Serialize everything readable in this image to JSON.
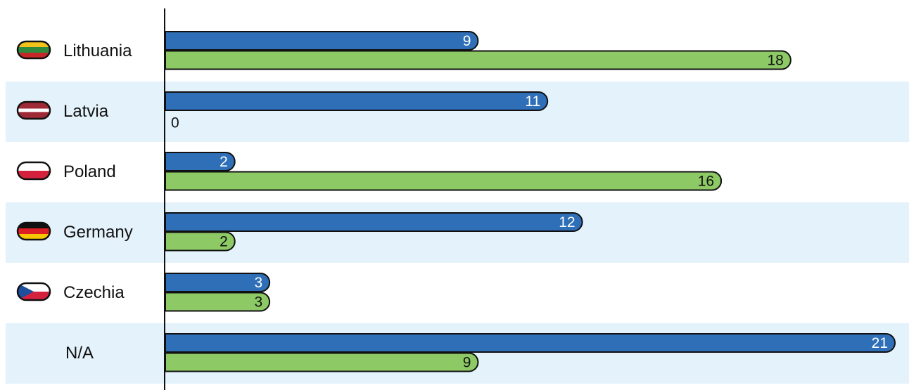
{
  "chart_data": {
    "type": "bar",
    "orientation": "horizontal",
    "categories": [
      "Lithuania",
      "Latvia",
      "Poland",
      "Germany",
      "Czechia",
      "N/A"
    ],
    "flags": [
      "flag-lithuania-icon",
      "flag-latvia-icon",
      "flag-poland-icon",
      "flag-germany-icon",
      "flag-czechia-icon",
      ""
    ],
    "series": [
      {
        "values": [
          9,
          11,
          2,
          12,
          3,
          21
        ],
        "color": "#2e6fb8"
      },
      {
        "values": [
          18,
          0,
          16,
          2,
          3,
          9
        ],
        "color": "#8dc965"
      }
    ],
    "xlim": [
      0,
      21
    ],
    "grid": false,
    "legend": "none",
    "band_color": "#e4f2fb"
  }
}
